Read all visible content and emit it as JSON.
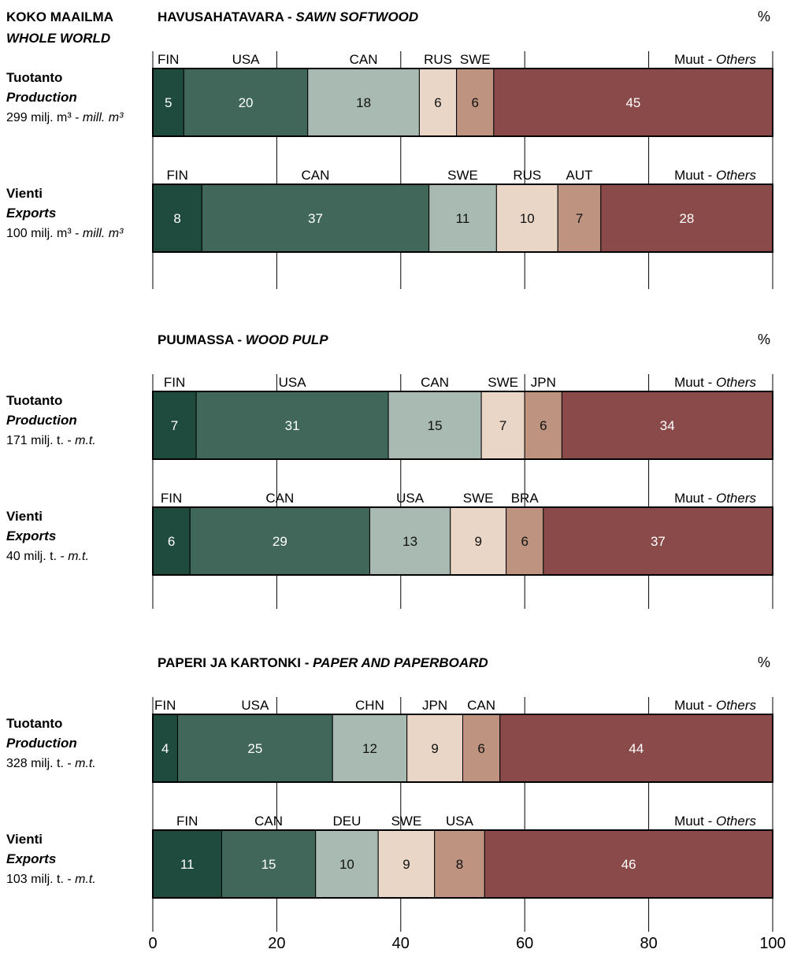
{
  "header": {
    "line1": "KOKO MAAILMA",
    "line2": "WHOLE WORLD",
    "percent_sign": "%"
  },
  "others_label": {
    "fi": "Muut - ",
    "en": "Others"
  },
  "colors": [
    "#1f4a3e",
    "#40675a",
    "#a8bab2",
    "#ead6c6",
    "#be9480",
    "#8b4a4a"
  ],
  "axis": {
    "ticks": [
      "0",
      "20",
      "40",
      "60",
      "80",
      "100"
    ],
    "range": [
      0,
      100
    ]
  },
  "chart_data": [
    {
      "type": "bar",
      "stacked": true,
      "orientation": "horizontal",
      "title_fi": "HAVUSAHATAVARA - ",
      "title_en": "SAWN SOFTWOOD",
      "bars": [
        {
          "label_fi": "Tuotanto",
          "label_en": "Production",
          "volume": "299 milj. m³ - ",
          "volume_unit": "mill. m³",
          "categories": [
            "FIN",
            "USA",
            "CAN",
            "RUS",
            "SWE",
            "Muut - Others"
          ],
          "values": [
            5,
            20,
            18,
            6,
            6,
            45
          ]
        },
        {
          "label_fi": "Vienti",
          "label_en": "Exports",
          "volume": "100 milj. m³ - ",
          "volume_unit": "mill. m³",
          "categories": [
            "FIN",
            "CAN",
            "SWE",
            "RUS",
            "AUT",
            "Muut - Others"
          ],
          "values": [
            8,
            37,
            11,
            10,
            7,
            28
          ]
        }
      ],
      "xlim": [
        0,
        100
      ]
    },
    {
      "type": "bar",
      "stacked": true,
      "orientation": "horizontal",
      "title_fi": "PUUMASSA - ",
      "title_en": "WOOD PULP",
      "bars": [
        {
          "label_fi": "Tuotanto",
          "label_en": "Production",
          "volume": "171 milj. t. - ",
          "volume_unit": "m.t.",
          "categories": [
            "FIN",
            "USA",
            "CAN",
            "SWE",
            "JPN",
            "Muut - Others"
          ],
          "values": [
            7,
            31,
            15,
            7,
            6,
            34
          ]
        },
        {
          "label_fi": "Vienti",
          "label_en": "Exports",
          "volume": "40 milj. t. - ",
          "volume_unit": "m.t.",
          "categories": [
            "FIN",
            "CAN",
            "USA",
            "SWE",
            "BRA",
            "Muut - Others"
          ],
          "values": [
            6,
            29,
            13,
            9,
            6,
            37
          ]
        }
      ],
      "xlim": [
        0,
        100
      ]
    },
    {
      "type": "bar",
      "stacked": true,
      "orientation": "horizontal",
      "title_fi": "PAPERI JA KARTONKI - ",
      "title_en": "PAPER AND PAPERBOARD",
      "bars": [
        {
          "label_fi": "Tuotanto",
          "label_en": "Production",
          "volume": "328 milj. t. - ",
          "volume_unit": "m.t.",
          "categories": [
            "FIN",
            "USA",
            "CHN",
            "JPN",
            "CAN",
            "Muut - Others"
          ],
          "values": [
            4,
            25,
            12,
            9,
            6,
            44
          ]
        },
        {
          "label_fi": "Vienti",
          "label_en": "Exports",
          "volume": "103 milj. t. - ",
          "volume_unit": "m.t.",
          "categories": [
            "FIN",
            "CAN",
            "DEU",
            "SWE",
            "USA",
            "Muut - Others"
          ],
          "values": [
            11,
            15,
            10,
            9,
            8,
            46
          ]
        }
      ],
      "xlim": [
        0,
        100
      ]
    }
  ]
}
